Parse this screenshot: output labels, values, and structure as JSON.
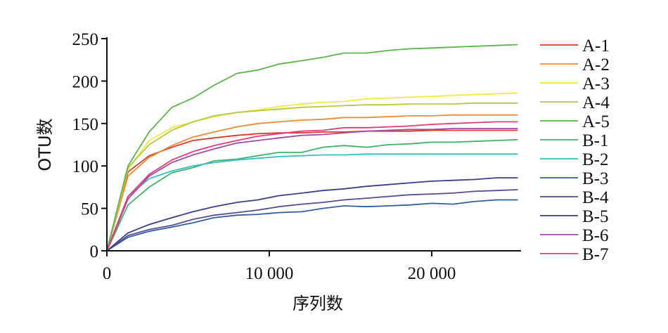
{
  "chart_data": {
    "type": "line",
    "xlabel": "序列数",
    "ylabel": "OTU数",
    "xlim": [
      0,
      25500
    ],
    "ylim": [
      0,
      250
    ],
    "x_ticks": [
      0,
      10000,
      20000
    ],
    "x_tick_labels": [
      "0",
      "10 000",
      "20 000"
    ],
    "y_ticks": [
      0,
      50,
      100,
      150,
      200,
      250
    ],
    "y_tick_labels": [
      "0",
      "50",
      "100",
      "150",
      "200",
      "250"
    ],
    "grid": false,
    "legend_position": "right",
    "x": [
      0,
      1300,
      2600,
      4000,
      5300,
      6600,
      8000,
      9300,
      10600,
      12000,
      13300,
      14600,
      16000,
      17300,
      18600,
      20000,
      21300,
      22600,
      24000,
      25300
    ],
    "series": [
      {
        "name": "A-1",
        "color": "#d93a2b",
        "values": [
          0,
          93,
          112,
          122,
          130,
          133,
          136,
          138,
          139,
          139,
          140,
          140,
          141,
          141,
          141,
          142,
          142,
          142,
          142,
          142
        ]
      },
      {
        "name": "A-2",
        "color": "#f08a33",
        "values": [
          0,
          88,
          110,
          124,
          134,
          140,
          146,
          150,
          152,
          154,
          155,
          157,
          157,
          158,
          159,
          159,
          160,
          160,
          160,
          160
        ]
      },
      {
        "name": "A-3",
        "color": "#f2ea3e",
        "values": [
          0,
          96,
          130,
          145,
          152,
          158,
          163,
          166,
          170,
          173,
          175,
          176,
          179,
          180,
          181,
          182,
          183,
          184,
          185,
          186
        ]
      },
      {
        "name": "A-4",
        "color": "#b5c93f",
        "values": [
          0,
          98,
          125,
          142,
          152,
          159,
          163,
          165,
          167,
          169,
          170,
          171,
          172,
          172,
          173,
          173,
          173,
          174,
          174,
          174
        ]
      },
      {
        "name": "A-5",
        "color": "#5ab54a",
        "values": [
          0,
          100,
          140,
          169,
          180,
          195,
          209,
          213,
          220,
          224,
          228,
          233,
          233,
          236,
          238,
          239,
          240,
          241,
          242,
          243
        ]
      },
      {
        "name": "B-1",
        "color": "#3fb36a",
        "values": [
          0,
          54,
          75,
          92,
          98,
          106,
          108,
          112,
          116,
          116,
          122,
          124,
          122,
          125,
          126,
          128,
          128,
          129,
          130,
          131
        ]
      },
      {
        "name": "B-2",
        "color": "#35c0c8",
        "values": [
          0,
          64,
          85,
          94,
          100,
          104,
          107,
          109,
          111,
          112,
          113,
          113,
          114,
          114,
          114,
          114,
          114,
          114,
          114,
          114
        ]
      },
      {
        "name": "B-3",
        "color": "#2f5ea6",
        "values": [
          0,
          16,
          23,
          28,
          33,
          39,
          42,
          43,
          45,
          46,
          50,
          53,
          52,
          53,
          54,
          56,
          55,
          58,
          60,
          60
        ]
      },
      {
        "name": "B-4",
        "color": "#5b4a96",
        "values": [
          0,
          18,
          25,
          30,
          37,
          42,
          45,
          48,
          52,
          55,
          57,
          60,
          62,
          64,
          66,
          67,
          68,
          70,
          71,
          72
        ]
      },
      {
        "name": "B-5",
        "color": "#3b3d8c",
        "values": [
          0,
          21,
          31,
          39,
          46,
          52,
          57,
          60,
          65,
          68,
          71,
          73,
          76,
          78,
          80,
          82,
          83,
          84,
          86,
          86
        ]
      },
      {
        "name": "B-6",
        "color": "#a24aa6",
        "values": [
          0,
          61,
          88,
          104,
          113,
          120,
          127,
          130,
          133,
          136,
          137,
          139,
          141,
          142,
          143,
          143,
          144,
          144,
          144,
          144
        ]
      },
      {
        "name": "B-7",
        "color": "#e03c78",
        "values": [
          0,
          64,
          90,
          107,
          117,
          124,
          130,
          135,
          138,
          141,
          142,
          145,
          145,
          146,
          147,
          149,
          150,
          151,
          152,
          152
        ]
      }
    ]
  }
}
